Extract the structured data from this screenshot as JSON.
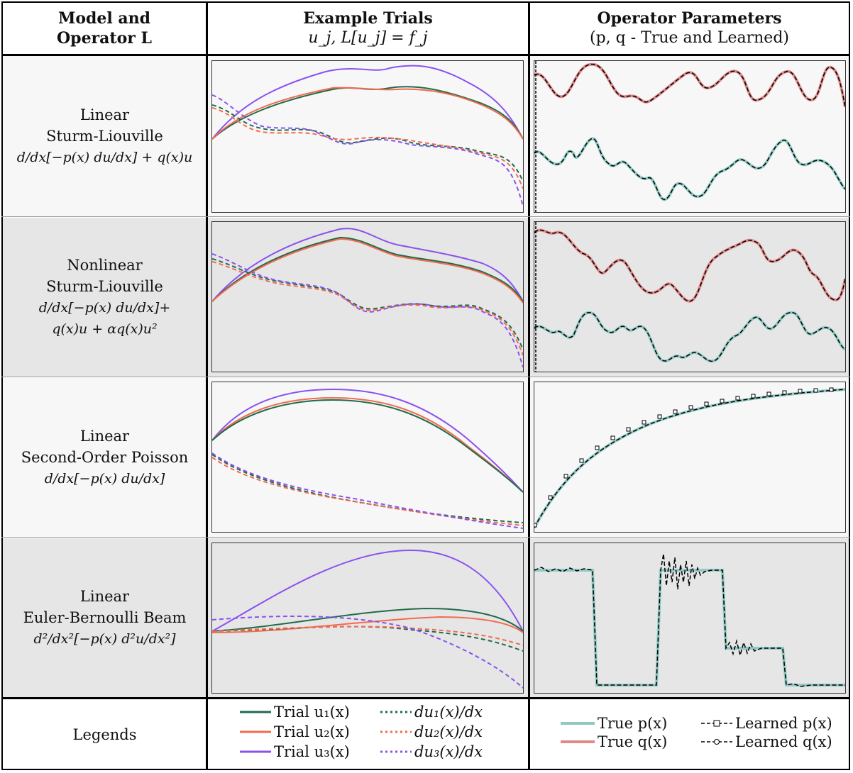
{
  "headers": {
    "col1_line1": "Model and",
    "col1_line2": "Operator L",
    "col2_line1": "Example Trials",
    "col2_line2": "u_j, L[u_j] = f_j",
    "col3_line1": "Operator Parameters",
    "col3_line2": "(p, q - True and Learned)"
  },
  "rows": [
    {
      "line1": "Linear",
      "line2": "Sturm-Liouville",
      "eq1": "d/dx[−p(x) du/dx] + q(x)u",
      "eq2": ""
    },
    {
      "line1": "Nonlinear",
      "line2": "Sturm-Liouville",
      "eq1": "d/dx[−p(x) du/dx]+",
      "eq2": "q(x)u + αq(x)u²"
    },
    {
      "line1": "Linear",
      "line2": "Second-Order Poisson",
      "eq1": "d/dx[−p(x) du/dx]",
      "eq2": ""
    },
    {
      "line1": "Linear",
      "line2": "Euler-Bernoulli Beam",
      "eq1": "d²/dx²[−p(x) d²u/dx²]",
      "eq2": ""
    }
  ],
  "legend_row_label": "Legends",
  "legend_trials": [
    {
      "label": "Trial u₁(x)",
      "color": "#1f6b4a",
      "dashed": false
    },
    {
      "label": "Trial u₂(x)",
      "color": "#f26b4f",
      "dashed": false
    },
    {
      "label": "Trial u₃(x)",
      "color": "#8a52f0",
      "dashed": false
    },
    {
      "label": "du₁(x)/dx",
      "color": "#1f6b4a",
      "dashed": true
    },
    {
      "label": "du₂(x)/dx",
      "color": "#f26b4f",
      "dashed": true
    },
    {
      "label": "du₃(x)/dx",
      "color": "#8a52f0",
      "dashed": true
    }
  ],
  "legend_params": [
    {
      "label": "True p(x)",
      "color": "#8fc9c3"
    },
    {
      "label": "True q(x)",
      "color": "#e08a8a"
    },
    {
      "label": "Learned p(x)",
      "color": "#000000"
    },
    {
      "label": "Learned q(x)",
      "color": "#000000"
    }
  ],
  "colors": {
    "row_light": "#f7f7f7",
    "row_dark": "#e6e6e6",
    "trial1": "#1f6b4a",
    "trial2": "#f26b4f",
    "trial3": "#8a52f0",
    "true_p": "#8fc9c3",
    "true_q": "#e08a8a"
  }
}
